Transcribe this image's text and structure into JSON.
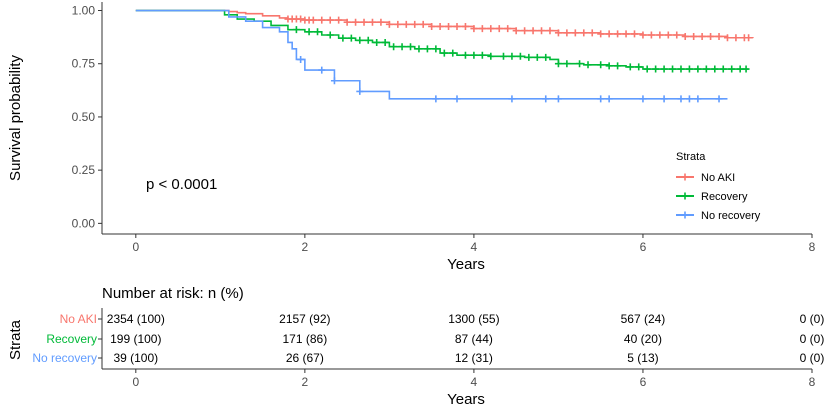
{
  "colors": {
    "no_aki": "#F8766D",
    "recovery": "#00BA38",
    "no_recovery": "#619CFF",
    "axis": "#333333",
    "text": "#000000",
    "tick_text": "#4d4d4d"
  },
  "chart_data": [
    {
      "type": "line",
      "subtype": "kaplan-meier",
      "title": "",
      "xlabel": "Years",
      "ylabel": "Survival probability",
      "xlim": [
        -0.4,
        8.0
      ],
      "ylim": [
        -0.05,
        1.04
      ],
      "xticks": [
        0,
        2,
        4,
        6,
        8
      ],
      "xtick_labels": [
        "0",
        "2",
        "4",
        "6",
        "8"
      ],
      "yticks": [
        0.0,
        0.25,
        0.5,
        0.75,
        1.0
      ],
      "ytick_labels": [
        "0.00",
        "0.25",
        "0.50",
        "0.75",
        "1.00"
      ],
      "annotation": "p < 0.0001",
      "legend": {
        "title": "Strata",
        "position": "right",
        "entries": [
          "No AKI",
          "Recovery",
          "No recovery"
        ]
      },
      "series": [
        {
          "name": "No AKI",
          "color_key": "no_aki",
          "x": [
            0,
            1.0,
            1.1,
            1.2,
            1.3,
            1.5,
            1.7,
            1.8,
            2.0,
            2.5,
            3.0,
            3.5,
            4.0,
            4.5,
            5.0,
            5.5,
            6.0,
            6.5,
            7.0,
            7.3
          ],
          "y": [
            1.0,
            1.0,
            0.995,
            0.99,
            0.985,
            0.975,
            0.965,
            0.96,
            0.955,
            0.945,
            0.935,
            0.925,
            0.915,
            0.905,
            0.895,
            0.89,
            0.885,
            0.878,
            0.872,
            0.87
          ],
          "censor_x": [
            1.8,
            1.85,
            1.9,
            1.95,
            2.0,
            2.05,
            2.1,
            2.2,
            2.3,
            2.4,
            2.5,
            2.6,
            2.7,
            2.8,
            2.9,
            3.0,
            3.1,
            3.2,
            3.3,
            3.4,
            3.5,
            3.6,
            3.7,
            3.8,
            3.9,
            4.0,
            4.1,
            4.2,
            4.3,
            4.4,
            4.5,
            4.6,
            4.7,
            4.8,
            4.9,
            5.0,
            5.1,
            5.2,
            5.3,
            5.4,
            5.5,
            5.6,
            5.7,
            5.8,
            5.9,
            6.0,
            6.1,
            6.2,
            6.3,
            6.4,
            6.5,
            6.6,
            6.7,
            6.8,
            6.9,
            7.0,
            7.1,
            7.2,
            7.25
          ]
        },
        {
          "name": "Recovery",
          "color_key": "recovery",
          "x": [
            0,
            1.0,
            1.05,
            1.2,
            1.4,
            1.6,
            1.8,
            2.0,
            2.2,
            2.4,
            2.6,
            2.8,
            3.0,
            3.3,
            3.6,
            3.8,
            4.2,
            4.6,
            4.9,
            5.0,
            5.3,
            5.6,
            5.8,
            6.0,
            6.5,
            7.0,
            7.25
          ],
          "y": [
            1.0,
            1.0,
            0.98,
            0.96,
            0.95,
            0.93,
            0.91,
            0.9,
            0.885,
            0.87,
            0.86,
            0.85,
            0.83,
            0.82,
            0.8,
            0.79,
            0.785,
            0.78,
            0.77,
            0.75,
            0.745,
            0.74,
            0.735,
            0.725,
            0.725,
            0.725,
            0.725
          ],
          "censor_x": [
            1.9,
            2.05,
            2.15,
            2.3,
            2.45,
            2.55,
            2.65,
            2.75,
            2.85,
            2.95,
            3.05,
            3.15,
            3.25,
            3.35,
            3.45,
            3.55,
            3.65,
            3.75,
            3.9,
            4.0,
            4.1,
            4.2,
            4.35,
            4.45,
            4.55,
            4.65,
            4.75,
            4.85,
            5.0,
            5.1,
            5.25,
            5.35,
            5.5,
            5.6,
            5.7,
            5.85,
            5.95,
            6.05,
            6.15,
            6.25,
            6.35,
            6.45,
            6.55,
            6.65,
            6.75,
            6.85,
            6.95,
            7.05,
            7.15,
            7.22
          ]
        },
        {
          "name": "No recovery",
          "color_key": "no_recovery",
          "x": [
            0,
            1.0,
            1.1,
            1.3,
            1.5,
            1.7,
            1.8,
            1.85,
            1.9,
            2.0,
            2.3,
            2.35,
            2.6,
            2.65,
            2.9,
            3.0,
            7.0
          ],
          "y": [
            1.0,
            1.0,
            0.97,
            0.95,
            0.92,
            0.9,
            0.85,
            0.82,
            0.77,
            0.72,
            0.72,
            0.67,
            0.67,
            0.62,
            0.62,
            0.585,
            0.585
          ],
          "censor_x": [
            1.95,
            2.2,
            2.35,
            2.65,
            3.55,
            3.8,
            4.45,
            4.85,
            5.0,
            5.5,
            5.6,
            6.0,
            6.25,
            6.45,
            6.55,
            6.65,
            6.9
          ]
        }
      ]
    },
    {
      "type": "table",
      "title": "Number at risk: n (%)",
      "xlabel": "Years",
      "ylabel": "Strata",
      "xlim": [
        -0.4,
        8.0
      ],
      "xticks": [
        0,
        2,
        4,
        6,
        8
      ],
      "xtick_labels": [
        "0",
        "2",
        "4",
        "6",
        "8"
      ],
      "rows": [
        {
          "name": "No AKI",
          "color_key": "no_aki",
          "values": [
            "2354 (100)",
            "2157 (92)",
            "1300 (55)",
            "567 (24)",
            "0 (0)"
          ]
        },
        {
          "name": "Recovery",
          "color_key": "recovery",
          "values": [
            "199 (100)",
            "171 (86)",
            "87 (44)",
            "40 (20)",
            "0 (0)"
          ]
        },
        {
          "name": "No recovery",
          "color_key": "no_recovery",
          "values": [
            "39 (100)",
            "26 (67)",
            "12 (31)",
            "5 (13)",
            "0 (0)"
          ]
        }
      ]
    }
  ]
}
